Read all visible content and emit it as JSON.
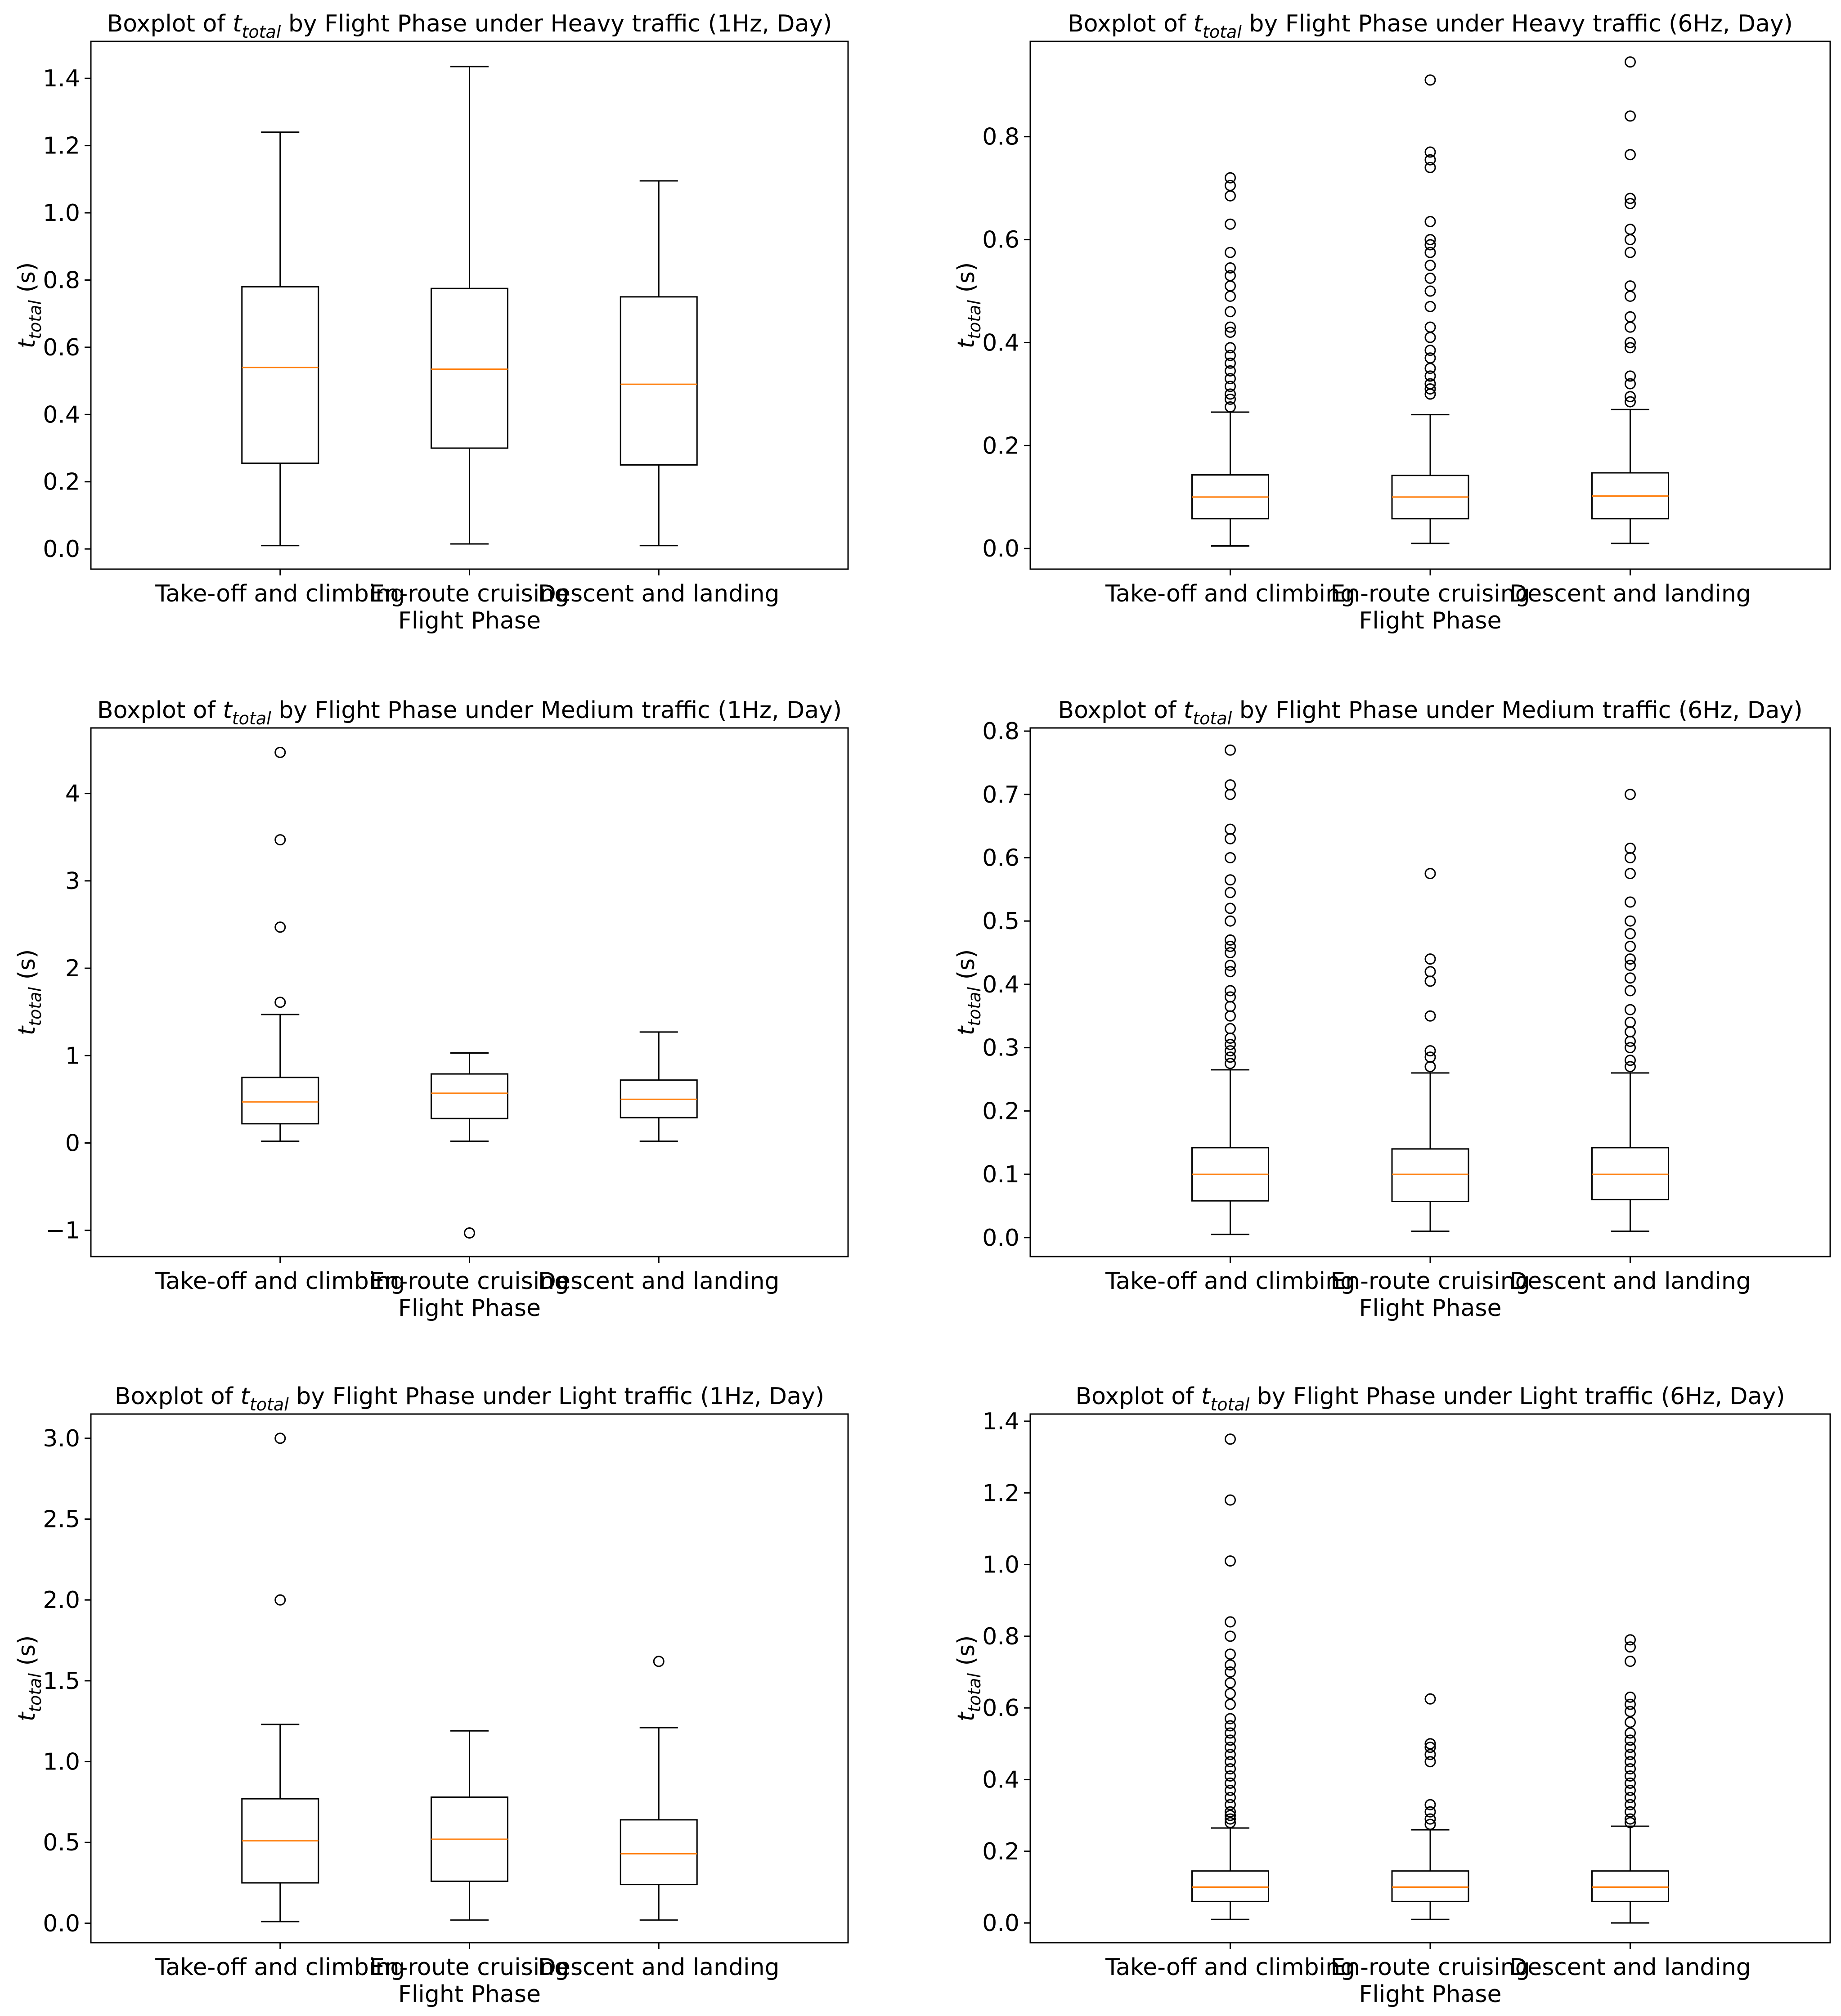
{
  "chart_data": [
    {
      "type": "boxplot",
      "title_prefix": "Boxplot of ",
      "title_var": "t",
      "title_sub": "total",
      "title_suffix": " by Flight Phase under Heavy traffic (1Hz, Day)",
      "ylabel_var": "t",
      "ylabel_sub": "total",
      "ylabel_unit": " (s)",
      "xlabel": "Flight Phase",
      "categories": [
        "Take-off and climbing",
        "En-route cruising",
        "Descent and landing"
      ],
      "yticks": [
        "0.0",
        "0.2",
        "0.4",
        "0.6",
        "0.8",
        "1.0",
        "1.2",
        "1.4"
      ],
      "ytick_values": [
        0,
        0.2,
        0.4,
        0.6,
        0.8,
        1.0,
        1.2,
        1.4
      ],
      "ylim": [
        -0.06,
        1.51
      ],
      "boxes": [
        {
          "whislo": 0.01,
          "q1": 0.255,
          "med": 0.54,
          "q3": 0.78,
          "whishi": 1.24,
          "fliers": []
        },
        {
          "whislo": 0.015,
          "q1": 0.3,
          "med": 0.535,
          "q3": 0.775,
          "whishi": 1.435,
          "fliers": []
        },
        {
          "whislo": 0.01,
          "q1": 0.25,
          "med": 0.49,
          "q3": 0.75,
          "whishi": 1.095,
          "fliers": []
        }
      ]
    },
    {
      "type": "boxplot",
      "title_prefix": "Boxplot of ",
      "title_var": "t",
      "title_sub": "total",
      "title_suffix": " by Flight Phase under Heavy traffic (6Hz, Day)",
      "ylabel_var": "t",
      "ylabel_sub": "total",
      "ylabel_unit": " (s)",
      "xlabel": "Flight Phase",
      "categories": [
        "Take-off and climbing",
        "En-route cruising",
        "Descent and landing"
      ],
      "yticks": [
        "0.0",
        "0.2",
        "0.4",
        "0.6",
        "0.8"
      ],
      "ytick_values": [
        0,
        0.2,
        0.4,
        0.6,
        0.8
      ],
      "ylim": [
        -0.04,
        0.985
      ],
      "boxes": [
        {
          "whislo": 0.005,
          "q1": 0.058,
          "med": 0.1,
          "q3": 0.143,
          "whishi": 0.265,
          "fliers": [
            0.275,
            0.29,
            0.3,
            0.315,
            0.33,
            0.345,
            0.36,
            0.375,
            0.39,
            0.42,
            0.43,
            0.46,
            0.49,
            0.51,
            0.53,
            0.545,
            0.575,
            0.63,
            0.685,
            0.705,
            0.72
          ]
        },
        {
          "whislo": 0.01,
          "q1": 0.058,
          "med": 0.1,
          "q3": 0.142,
          "whishi": 0.26,
          "fliers": [
            0.3,
            0.31,
            0.32,
            0.335,
            0.35,
            0.37,
            0.385,
            0.41,
            0.43,
            0.47,
            0.5,
            0.525,
            0.55,
            0.575,
            0.59,
            0.6,
            0.635,
            0.74,
            0.755,
            0.77,
            0.91
          ]
        },
        {
          "whislo": 0.01,
          "q1": 0.058,
          "med": 0.102,
          "q3": 0.147,
          "whishi": 0.27,
          "fliers": [
            0.285,
            0.295,
            0.32,
            0.335,
            0.39,
            0.4,
            0.43,
            0.45,
            0.49,
            0.51,
            0.575,
            0.6,
            0.62,
            0.67,
            0.68,
            0.765,
            0.84,
            0.945
          ]
        }
      ]
    },
    {
      "type": "boxplot",
      "title_prefix": "Boxplot of ",
      "title_var": "t",
      "title_sub": "total",
      "title_suffix": " by Flight Phase under Medium traffic (1Hz, Day)",
      "ylabel_var": "t",
      "ylabel_sub": "total",
      "ylabel_unit": " (s)",
      "xlabel": "Flight Phase",
      "categories": [
        "Take-off and climbing",
        "En-route cruising",
        "Descent and landing"
      ],
      "yticks": [
        "−1",
        "0",
        "1",
        "2",
        "3",
        "4"
      ],
      "ytick_values": [
        -1,
        0,
        1,
        2,
        3,
        4
      ],
      "ylim": [
        -1.3,
        4.75
      ],
      "boxes": [
        {
          "whislo": 0.02,
          "q1": 0.22,
          "med": 0.47,
          "q3": 0.75,
          "whishi": 1.47,
          "fliers": [
            1.61,
            2.47,
            3.47,
            4.47
          ]
        },
        {
          "whislo": 0.02,
          "q1": 0.28,
          "med": 0.57,
          "q3": 0.79,
          "whishi": 1.03,
          "fliers": [
            -1.03
          ]
        },
        {
          "whislo": 0.02,
          "q1": 0.29,
          "med": 0.5,
          "q3": 0.72,
          "whishi": 1.27,
          "fliers": []
        }
      ]
    },
    {
      "type": "boxplot",
      "title_prefix": "Boxplot of ",
      "title_var": "t",
      "title_sub": "total",
      "title_suffix": " by Flight Phase under Medium traffic (6Hz, Day)",
      "ylabel_var": "t",
      "ylabel_sub": "total",
      "ylabel_unit": " (s)",
      "xlabel": "Flight Phase",
      "categories": [
        "Take-off and climbing",
        "En-route cruising",
        "Descent and landing"
      ],
      "yticks": [
        "0.0",
        "0.1",
        "0.2",
        "0.3",
        "0.4",
        "0.5",
        "0.6",
        "0.7",
        "0.8"
      ],
      "ytick_values": [
        0,
        0.1,
        0.2,
        0.3,
        0.4,
        0.5,
        0.6,
        0.7,
        0.8
      ],
      "ylim": [
        -0.03,
        0.805
      ],
      "boxes": [
        {
          "whislo": 0.005,
          "q1": 0.058,
          "med": 0.1,
          "q3": 0.142,
          "whishi": 0.265,
          "fliers": [
            0.275,
            0.285,
            0.295,
            0.305,
            0.315,
            0.33,
            0.35,
            0.365,
            0.38,
            0.39,
            0.42,
            0.43,
            0.45,
            0.46,
            0.47,
            0.5,
            0.52,
            0.545,
            0.565,
            0.6,
            0.63,
            0.645,
            0.7,
            0.715,
            0.77
          ]
        },
        {
          "whislo": 0.01,
          "q1": 0.057,
          "med": 0.1,
          "q3": 0.14,
          "whishi": 0.26,
          "fliers": [
            0.27,
            0.285,
            0.295,
            0.35,
            0.405,
            0.42,
            0.44,
            0.575
          ]
        },
        {
          "whislo": 0.01,
          "q1": 0.06,
          "med": 0.1,
          "q3": 0.142,
          "whishi": 0.26,
          "fliers": [
            0.27,
            0.28,
            0.3,
            0.31,
            0.325,
            0.34,
            0.36,
            0.39,
            0.41,
            0.43,
            0.44,
            0.46,
            0.48,
            0.5,
            0.53,
            0.575,
            0.6,
            0.615,
            0.7
          ]
        }
      ]
    },
    {
      "type": "boxplot",
      "title_prefix": "Boxplot of ",
      "title_var": "t",
      "title_sub": "total",
      "title_suffix": " by Flight Phase under Light traffic (1Hz, Day)",
      "ylabel_var": "t",
      "ylabel_sub": "total",
      "ylabel_unit": " (s)",
      "xlabel": "Flight Phase",
      "categories": [
        "Take-off and climbing",
        "En-route cruising",
        "Descent and landing"
      ],
      "yticks": [
        "0.0",
        "0.5",
        "1.0",
        "1.5",
        "2.0",
        "2.5",
        "3.0"
      ],
      "ytick_values": [
        0,
        0.5,
        1.0,
        1.5,
        2.0,
        2.5,
        3.0
      ],
      "ylim": [
        -0.12,
        3.15
      ],
      "boxes": [
        {
          "whislo": 0.01,
          "q1": 0.25,
          "med": 0.51,
          "q3": 0.77,
          "whishi": 1.23,
          "fliers": [
            2.0,
            3.0
          ]
        },
        {
          "whislo": 0.02,
          "q1": 0.26,
          "med": 0.52,
          "q3": 0.78,
          "whishi": 1.19,
          "fliers": []
        },
        {
          "whislo": 0.02,
          "q1": 0.24,
          "med": 0.43,
          "q3": 0.64,
          "whishi": 1.21,
          "fliers": [
            1.62
          ]
        }
      ]
    },
    {
      "type": "boxplot",
      "title_prefix": "Boxplot of ",
      "title_var": "t",
      "title_sub": "total",
      "title_suffix": " by Flight Phase under Light traffic (6Hz, Day)",
      "ylabel_var": "t",
      "ylabel_sub": "total",
      "ylabel_unit": " (s)",
      "xlabel": "Flight Phase",
      "categories": [
        "Take-off and climbing",
        "En-route cruising",
        "Descent and landing"
      ],
      "yticks": [
        "0.0",
        "0.2",
        "0.4",
        "0.6",
        "0.8",
        "1.0",
        "1.2",
        "1.4"
      ],
      "ytick_values": [
        0,
        0.2,
        0.4,
        0.6,
        0.8,
        1.0,
        1.2,
        1.4
      ],
      "ylim": [
        -0.055,
        1.42
      ],
      "boxes": [
        {
          "whislo": 0.01,
          "q1": 0.06,
          "med": 0.1,
          "q3": 0.145,
          "whishi": 0.265,
          "fliers": [
            0.28,
            0.29,
            0.3,
            0.31,
            0.33,
            0.35,
            0.37,
            0.39,
            0.41,
            0.43,
            0.45,
            0.47,
            0.49,
            0.51,
            0.53,
            0.55,
            0.57,
            0.61,
            0.64,
            0.67,
            0.7,
            0.72,
            0.75,
            0.8,
            0.84,
            1.01,
            1.18,
            1.35
          ]
        },
        {
          "whislo": 0.01,
          "q1": 0.06,
          "med": 0.1,
          "q3": 0.145,
          "whishi": 0.26,
          "fliers": [
            0.275,
            0.29,
            0.31,
            0.33,
            0.45,
            0.47,
            0.49,
            0.5,
            0.625
          ]
        },
        {
          "whislo": 0.0,
          "q1": 0.06,
          "med": 0.1,
          "q3": 0.145,
          "whishi": 0.27,
          "fliers": [
            0.28,
            0.29,
            0.31,
            0.33,
            0.35,
            0.37,
            0.39,
            0.41,
            0.43,
            0.45,
            0.47,
            0.49,
            0.51,
            0.53,
            0.56,
            0.59,
            0.61,
            0.63,
            0.73,
            0.77,
            0.79
          ]
        }
      ]
    }
  ]
}
